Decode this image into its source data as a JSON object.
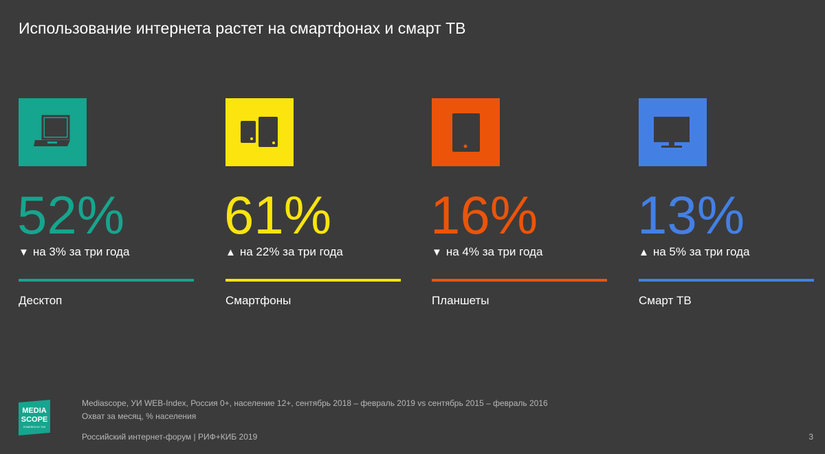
{
  "slide": {
    "title": "Использование интернета растет на смартфонах и смарт ТВ",
    "page_number": "3"
  },
  "colors": {
    "background": "#3b3b3b",
    "desktop": "#16a58e",
    "smartphones": "#fce40e",
    "tablets": "#ec5409",
    "smart_tv": "#4480e4"
  },
  "metrics": [
    {
      "icon": "laptop-icon",
      "value": "52%",
      "direction": "down",
      "arrow": "▼",
      "change": "на 3% за три года",
      "label": "Десктоп",
      "color": "#16a58e"
    },
    {
      "icon": "smartphones-icon",
      "value": "61%",
      "direction": "up",
      "arrow": "▲",
      "change": "на 22% за три года",
      "label": "Смартфоны",
      "color": "#fce40e"
    },
    {
      "icon": "tablet-icon",
      "value": "16%",
      "direction": "down",
      "arrow": "▼",
      "change": "на 4% за три года",
      "label": "Планшеты",
      "color": "#ec5409"
    },
    {
      "icon": "tv-icon",
      "value": "13%",
      "direction": "up",
      "arrow": "▲",
      "change": "на 5% за три года",
      "label": "Смарт ТВ",
      "color": "#4480e4"
    }
  ],
  "footer": {
    "logo": {
      "line1": "MEDIA",
      "line2": "SCOPE",
      "line3": "POWERED BY TNS",
      "color": "#16a58e"
    },
    "source": "Mediascope, УИ WEB-Index, Россия 0+, население 12+, сентябрь 2018 – февраль 2019 vs сентябрь 2015 – февраль 2016",
    "note": "Охват за месяц, % населения",
    "event": "Российский интернет-форум | РИФ+КИБ 2019"
  }
}
